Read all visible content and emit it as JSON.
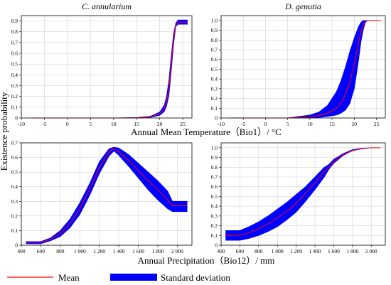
{
  "colors": {
    "mean": "#ff0000",
    "sd_band": "#0000ff",
    "grid": "#d4d4d4",
    "axis": "#000000"
  },
  "shared_labels": {
    "ylabel": "Existence probability",
    "xlabel_top": "Annual Mean Temperature（Bio1）/ °C",
    "xlabel_bottom": "Annual Precipitation（Bio12）/ mm"
  },
  "legend": {
    "placement": "bottom",
    "items": [
      {
        "label": "Mean",
        "kind": "line",
        "color": "#ff0000"
      },
      {
        "label": "Standard deviation",
        "kind": "band",
        "color": "#0000ff"
      }
    ]
  },
  "chart_data": [
    {
      "id": "c-annularium-bio1",
      "type": "area",
      "title": "C. annularium",
      "xlim": [
        -10,
        27
      ],
      "ylim": [
        0,
        0.95
      ],
      "xticks": [
        -10,
        -5,
        0,
        5,
        10,
        15,
        20,
        25
      ],
      "xtick_labels": [
        "-10",
        "-5",
        "0",
        "5",
        "10",
        "15",
        "20",
        "25"
      ],
      "yticks": [
        0,
        0.1,
        0.2,
        0.3,
        0.4,
        0.5,
        0.6,
        0.7,
        0.8,
        0.9
      ],
      "ytick_labels": [
        "0",
        "0.1",
        "0.2",
        "0.3",
        "0.4",
        "0.5",
        "0.6",
        "0.7",
        "0.8",
        "0.9"
      ],
      "x": [
        -8,
        0,
        10,
        15,
        18,
        20,
        21,
        21.5,
        22,
        22.5,
        23,
        23.5,
        24,
        26
      ],
      "mean": [
        0,
        0,
        0,
        0.002,
        0.01,
        0.04,
        0.09,
        0.15,
        0.28,
        0.5,
        0.73,
        0.86,
        0.89,
        0.89
      ],
      "lower": [
        0,
        0,
        0,
        0.0,
        0.005,
        0.025,
        0.06,
        0.11,
        0.21,
        0.43,
        0.68,
        0.85,
        0.87,
        0.87
      ],
      "upper": [
        0,
        0,
        0,
        0.004,
        0.016,
        0.055,
        0.12,
        0.2,
        0.35,
        0.57,
        0.78,
        0.88,
        0.91,
        0.91
      ]
    },
    {
      "id": "d-genutia-bio1",
      "type": "area",
      "title": "D. genutia",
      "xlim": [
        -10,
        27
      ],
      "ylim": [
        0,
        1.05
      ],
      "xticks": [
        -10,
        -5,
        0,
        5,
        10,
        15,
        20,
        25
      ],
      "xtick_labels": [
        "-10",
        "-5",
        "0",
        "5",
        "10",
        "15",
        "20",
        "25"
      ],
      "yticks": [
        0,
        0.1,
        0.2,
        0.3,
        0.4,
        0.5,
        0.6,
        0.7,
        0.8,
        0.9,
        1.0
      ],
      "ytick_labels": [
        "0",
        "0.1",
        "0.2",
        "0.3",
        "0.4",
        "0.5",
        "0.6",
        "0.7",
        "0.8",
        "0.9",
        "1.0"
      ],
      "x": [
        -8,
        0,
        5,
        10,
        12,
        14,
        16,
        17,
        18,
        19,
        20,
        21,
        21.5,
        22,
        22.5,
        23,
        26
      ],
      "mean": [
        0,
        0,
        0,
        0.01,
        0.025,
        0.05,
        0.1,
        0.15,
        0.24,
        0.37,
        0.55,
        0.78,
        0.88,
        0.95,
        0.99,
        1.0,
        1.0
      ],
      "lower": [
        0,
        0,
        0,
        0.0,
        0.005,
        0.015,
        0.03,
        0.05,
        0.08,
        0.15,
        0.3,
        0.6,
        0.78,
        0.9,
        0.98,
        1.0,
        1.0
      ],
      "upper": [
        0,
        0,
        0,
        0.03,
        0.06,
        0.13,
        0.27,
        0.38,
        0.52,
        0.68,
        0.82,
        0.94,
        0.98,
        1.0,
        1.0,
        1.0,
        1.0
      ]
    },
    {
      "id": "c-annularium-bio12",
      "type": "area",
      "title": "",
      "xlim": [
        400,
        2150
      ],
      "ylim": [
        0,
        0.7
      ],
      "xticks": [
        400,
        600,
        800,
        1000,
        1200,
        1400,
        1600,
        1800,
        2000
      ],
      "xtick_labels": [
        "400",
        "600",
        "800",
        "1 000",
        "1 200",
        "1 400",
        "1 600",
        "1 800",
        "2 000"
      ],
      "yticks": [
        0,
        0.1,
        0.2,
        0.3,
        0.4,
        0.5,
        0.6,
        0.7
      ],
      "ytick_labels": [
        "0",
        "0.1",
        "0.2",
        "0.3",
        "0.4",
        "0.5",
        "0.6",
        "0.7"
      ],
      "x": [
        450,
        600,
        700,
        800,
        900,
        1000,
        1100,
        1200,
        1300,
        1350,
        1400,
        1500,
        1600,
        1700,
        1800,
        1900,
        1950,
        2100
      ],
      "mean": [
        0.02,
        0.02,
        0.04,
        0.08,
        0.15,
        0.25,
        0.38,
        0.53,
        0.64,
        0.66,
        0.64,
        0.58,
        0.51,
        0.44,
        0.38,
        0.31,
        0.27,
        0.27
      ],
      "lower": [
        0.01,
        0.01,
        0.03,
        0.06,
        0.12,
        0.21,
        0.34,
        0.49,
        0.61,
        0.645,
        0.615,
        0.54,
        0.46,
        0.38,
        0.31,
        0.25,
        0.23,
        0.23
      ],
      "upper": [
        0.025,
        0.025,
        0.05,
        0.1,
        0.18,
        0.29,
        0.42,
        0.57,
        0.66,
        0.67,
        0.665,
        0.62,
        0.56,
        0.5,
        0.44,
        0.37,
        0.3,
        0.3
      ]
    },
    {
      "id": "d-genutia-bio12",
      "type": "area",
      "title": "",
      "xlim": [
        400,
        2150
      ],
      "ylim": [
        0,
        1.05
      ],
      "xticks": [
        400,
        600,
        800,
        1000,
        1200,
        1400,
        1600,
        1800,
        2000
      ],
      "xtick_labels": [
        "400",
        "600",
        "800",
        "1 000",
        "1 200",
        "1 400",
        "1 600",
        "1 800",
        "2 000"
      ],
      "yticks": [
        0,
        0.1,
        0.2,
        0.3,
        0.4,
        0.5,
        0.6,
        0.7,
        0.8,
        0.9,
        1.0
      ],
      "ytick_labels": [
        "0",
        "0.1",
        "0.2",
        "0.3",
        "0.4",
        "0.5",
        "0.6",
        "0.7",
        "0.8",
        "0.9",
        "1.0"
      ],
      "x": [
        450,
        600,
        700,
        800,
        900,
        1000,
        1100,
        1200,
        1300,
        1400,
        1500,
        1550,
        1600,
        1700,
        1800,
        1900,
        2000,
        2100
      ],
      "mean": [
        0.1,
        0.1,
        0.13,
        0.17,
        0.22,
        0.28,
        0.35,
        0.43,
        0.53,
        0.64,
        0.75,
        0.8,
        0.86,
        0.93,
        0.97,
        0.99,
        1.0,
        1.0
      ],
      "lower": [
        0.05,
        0.05,
        0.07,
        0.1,
        0.14,
        0.19,
        0.26,
        0.34,
        0.45,
        0.57,
        0.7,
        0.78,
        0.84,
        0.92,
        0.97,
        0.99,
        1.0,
        1.0
      ],
      "upper": [
        0.15,
        0.15,
        0.19,
        0.24,
        0.3,
        0.37,
        0.44,
        0.52,
        0.6,
        0.7,
        0.8,
        0.83,
        0.88,
        0.94,
        0.98,
        0.995,
        1.0,
        1.0
      ]
    }
  ]
}
